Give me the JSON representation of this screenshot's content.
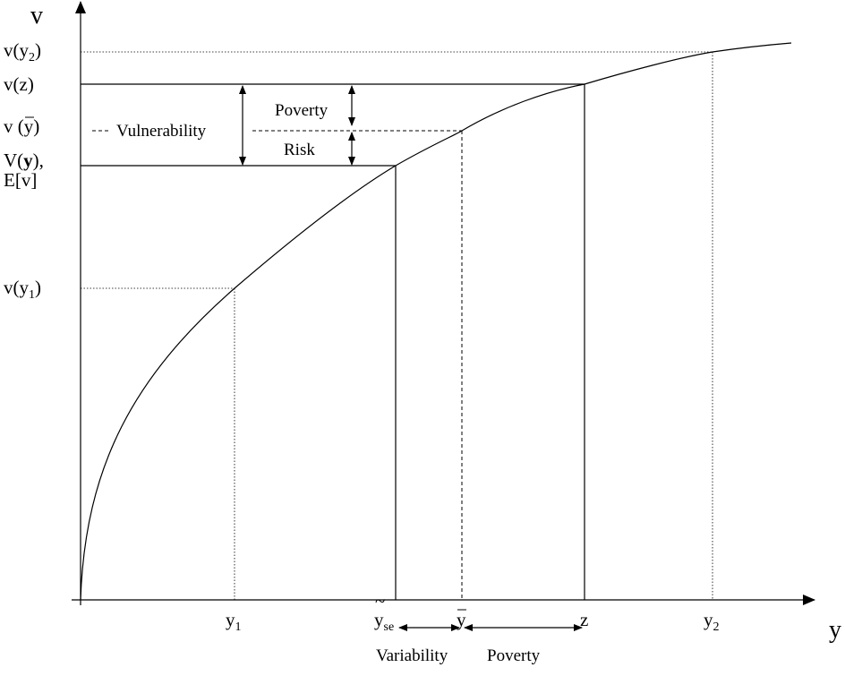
{
  "axes": {
    "y_title": "v",
    "x_title": "y"
  },
  "y_ticks": {
    "vy2": {
      "main": "v(y",
      "sub": "2",
      "close": ")"
    },
    "vz": "v(z)",
    "vybar": {
      "prefix": "v (",
      "ybar": "y",
      "close": ")"
    },
    "Vy": {
      "main": "V(",
      "bold": "y",
      "close": "),"
    },
    "Ev": "E[v]",
    "vy1": {
      "main": "v(y",
      "sub": "1",
      "close": ")"
    }
  },
  "x_ticks": {
    "y1": {
      "main": "y",
      "sub": "1"
    },
    "yse": {
      "main": "y",
      "sub": "se"
    },
    "ybar": "y",
    "z": "z",
    "y2": {
      "main": "y",
      "sub": "2"
    }
  },
  "annotations": {
    "vulnerability": "Vulnerability",
    "poverty_v": "Poverty",
    "risk": "Risk",
    "variability": "Variability",
    "poverty_h": "Poverty"
  }
}
